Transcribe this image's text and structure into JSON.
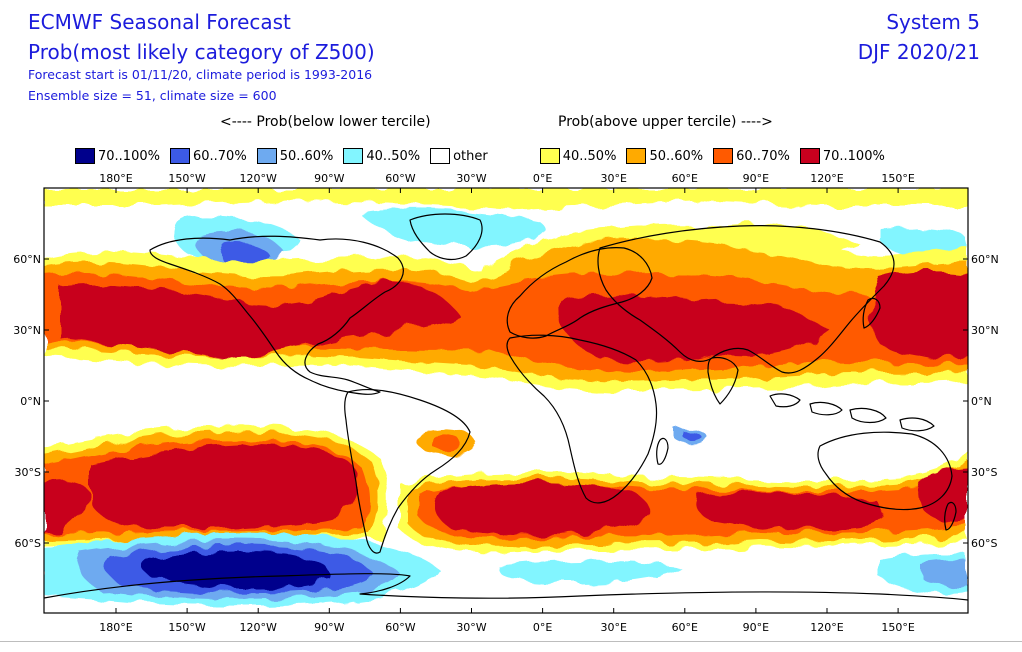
{
  "header": {
    "title": "ECMWF Seasonal Forecast",
    "subtitle": "Prob(most likely category of Z500)",
    "forecast_info": "Forecast start is 01/11/20, climate period is 1993-2016",
    "ensemble_info": "Ensemble size = 51, climate size = 600",
    "system": "System 5",
    "season": "DJF 2020/21"
  },
  "captions": {
    "below": "<---- Prob(below lower tercile)",
    "above": "Prob(above upper tercile) ---->"
  },
  "legend": [
    {
      "label": "70..100%",
      "color": "#00008c"
    },
    {
      "label": "60..70%",
      "color": "#3c5ae6"
    },
    {
      "label": "50..60%",
      "color": "#6eaaf0"
    },
    {
      "label": "40..50%",
      "color": "#82f5ff"
    },
    {
      "label": "other",
      "color": "#ffffff"
    },
    {
      "label": "40..50%",
      "color": "#ffff50"
    },
    {
      "label": "50..60%",
      "color": "#ffaa00"
    },
    {
      "label": "60..70%",
      "color": "#ff5a00"
    },
    {
      "label": "70..100%",
      "color": "#c8001e"
    }
  ],
  "map": {
    "lon_labels": [
      "180°E",
      "150°W",
      "120°W",
      "90°W",
      "60°W",
      "30°W",
      "0°E",
      "30°E",
      "60°E",
      "90°E",
      "120°E",
      "150°E"
    ],
    "lat_labels": [
      "60°N",
      "30°N",
      "0°N",
      "30°S",
      "60°S"
    ]
  }
}
